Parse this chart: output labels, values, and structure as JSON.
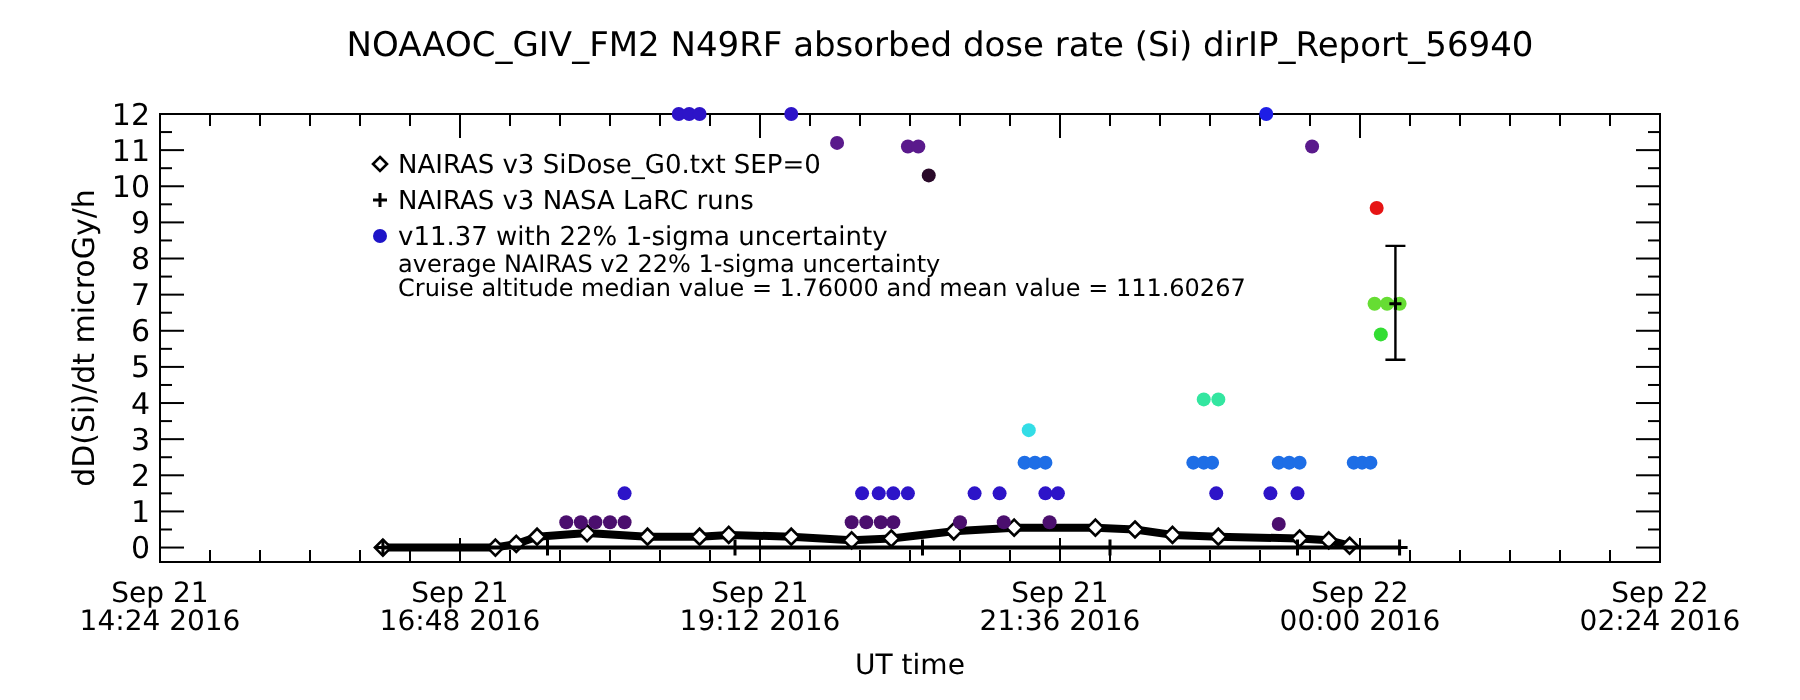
{
  "chart_data": {
    "type": "scatter",
    "title": "NOAAOC_GIV_FM2   N49RF  absorbed dose rate (Si) dirIP_Report_56940",
    "xlabel": "UT time",
    "ylabel": "dD(Si)/dt microGy/h",
    "xlim": [
      "2016-09-21T14:24",
      "2016-09-22T02:24"
    ],
    "xticks": [
      {
        "value": "2016-09-21T14:24",
        "label": "Sep 21\n14:24 2016"
      },
      {
        "value": "2016-09-21T16:48",
        "label": "Sep 21\n16:48 2016"
      },
      {
        "value": "2016-09-21T19:12",
        "label": "Sep 21\n19:12 2016"
      },
      {
        "value": "2016-09-21T21:36",
        "label": "Sep 21\n21:36 2016"
      },
      {
        "value": "2016-09-22T00:00",
        "label": "Sep 22\n00:00 2016"
      },
      {
        "value": "2016-09-22T02:24",
        "label": "Sep 22\n02:24 2016"
      }
    ],
    "ylim": [
      -0.4,
      12
    ],
    "yticks": [
      0,
      1,
      2,
      3,
      4,
      5,
      6,
      7,
      8,
      9,
      10,
      11,
      12
    ],
    "legend": "top left",
    "grid": false,
    "annotations": [
      "average NAIRAS v2 22% 1-sigma uncertainty",
      "Cruise altitude median value =   1.76000 and mean value =   111.60267"
    ],
    "series": [
      {
        "name": "NAIRAS v3 SiDose_G0.txt SEP=0",
        "type": "line",
        "marker": "diamond",
        "color": "#000000",
        "x": [
          "2016-09-21T16:11",
          "2016-09-21T17:05",
          "2016-09-21T17:15",
          "2016-09-21T17:25",
          "2016-09-21T17:49",
          "2016-09-21T18:18",
          "2016-09-21T18:43",
          "2016-09-21T18:57",
          "2016-09-21T19:27",
          "2016-09-21T19:56",
          "2016-09-21T20:15",
          "2016-09-21T20:45",
          "2016-09-21T21:14",
          "2016-09-21T21:53",
          "2016-09-21T22:12",
          "2016-09-21T22:30",
          "2016-09-21T22:52",
          "2016-09-21T23:31",
          "2016-09-21T23:45",
          "2016-09-21T23:55"
        ],
        "values": [
          0,
          0,
          0.1,
          0.3,
          0.4,
          0.3,
          0.3,
          0.35,
          0.3,
          0.2,
          0.25,
          0.45,
          0.55,
          0.55,
          0.5,
          0.35,
          0.3,
          0.25,
          0.2,
          0.05
        ]
      },
      {
        "name": "NAIRAS v3 NASA LaRC runs",
        "type": "line",
        "marker": "cross",
        "color": "#000000",
        "x": [
          "2016-09-21T16:11",
          "2016-09-21T17:30",
          "2016-09-21T19:00",
          "2016-09-21T20:30",
          "2016-09-21T22:00",
          "2016-09-21T23:30",
          "2016-09-22T00:19"
        ],
        "values": [
          0,
          0,
          0,
          0,
          0,
          0,
          0
        ]
      },
      {
        "name": "v11.37 with 22% 1-sigma uncertainty",
        "marker": "circle",
        "color": "#1e14c8",
        "x": [
          "2016-09-21T17:39",
          "2016-09-21T17:46",
          "2016-09-21T17:53",
          "2016-09-21T18:00",
          "2016-09-21T18:07",
          "2016-09-21T18:07",
          "2016-09-21T18:33",
          "2016-09-21T18:38",
          "2016-09-21T18:43",
          "2016-09-21T19:27",
          "2016-09-21T19:49",
          "2016-09-21T20:23",
          "2016-09-21T20:28",
          "2016-09-21T20:33",
          "2016-09-21T19:56",
          "2016-09-21T20:03",
          "2016-09-21T20:10",
          "2016-09-21T20:16",
          "2016-09-21T20:01",
          "2016-09-21T20:09",
          "2016-09-21T20:16",
          "2016-09-21T20:23",
          "2016-09-21T20:48",
          "2016-09-21T20:55",
          "2016-09-21T21:07",
          "2016-09-21T21:09",
          "2016-09-21T21:19",
          "2016-09-21T21:24",
          "2016-09-21T21:29",
          "2016-09-21T21:21",
          "2016-09-21T21:29",
          "2016-09-21T21:35",
          "2016-09-21T21:31",
          "2016-09-21T22:40",
          "2016-09-21T22:45",
          "2016-09-21T22:49",
          "2016-09-21T22:45",
          "2016-09-21T22:52",
          "2016-09-21T22:51",
          "2016-09-21T23:15",
          "2016-09-21T23:37",
          "2016-09-21T23:17",
          "2016-09-21T23:21",
          "2016-09-21T23:21",
          "2016-09-21T23:26",
          "2016-09-21T23:31",
          "2016-09-21T23:30",
          "2016-09-21T23:57",
          "2016-09-22T00:01",
          "2016-09-22T00:05",
          "2016-09-22T00:08",
          "2016-09-22T00:07",
          "2016-09-22T00:13",
          "2016-09-22T00:19",
          "2016-09-22T00:10"
        ],
        "values": [
          0.7,
          0.7,
          0.7,
          0.7,
          0.7,
          1.5,
          12,
          12,
          12,
          12,
          11.2,
          11.1,
          11.1,
          10.3,
          0.7,
          0.7,
          0.7,
          0.7,
          1.5,
          1.5,
          1.5,
          1.5,
          0.7,
          1.5,
          1.5,
          0.7,
          2.35,
          2.35,
          2.35,
          3.25,
          1.5,
          1.5,
          0.7,
          2.35,
          2.35,
          2.35,
          4.1,
          4.1,
          1.5,
          12,
          11.1,
          1.5,
          0.65,
          2.35,
          2.35,
          2.35,
          1.5,
          2.35,
          2.35,
          2.35,
          9.4,
          6.75,
          6.75,
          6.75,
          5.9
        ],
        "colors": [
          "#4b0f6e",
          "#4b0f6e",
          "#4b0f6e",
          "#4b0f6e",
          "#4b0f6e",
          "#2d14c8",
          "#2d14c8",
          "#2d14c8",
          "#2d14c8",
          "#2d14c8",
          "#5a1a8c",
          "#5a1a8c",
          "#5a1a8c",
          "#2a0a2a",
          "#4b0f6e",
          "#4b0f6e",
          "#4b0f6e",
          "#4b0f6e",
          "#2d14c8",
          "#2d14c8",
          "#2d14c8",
          "#2d14c8",
          "#4b0f6e",
          "#2d14c8",
          "#2d14c8",
          "#4b0f6e",
          "#1e6ee6",
          "#1e6ee6",
          "#1e6ee6",
          "#33dde6",
          "#2d14c8",
          "#2d14c8",
          "#4b0f6e",
          "#1e6ee6",
          "#1e6ee6",
          "#1e6ee6",
          "#33e6a0",
          "#33e6a0",
          "#2d14c8",
          "#1e1ee6",
          "#5a1a8c",
          "#2d14c8",
          "#4b0f6e",
          "#1e6ee6",
          "#1e6ee6",
          "#1e6ee6",
          "#2d14c8",
          "#1e6ee6",
          "#1e6ee6",
          "#1e6ee6",
          "#e61414",
          "#66dd33",
          "#66dd33",
          "#66dd33",
          "#33dd33"
        ]
      },
      {
        "marker": "cross",
        "color": "#000000",
        "x": [
          "2016-09-22T00:17"
        ],
        "values": [
          6.75
        ],
        "errors": [
          [
            5.2,
            8.35
          ]
        ]
      }
    ]
  }
}
